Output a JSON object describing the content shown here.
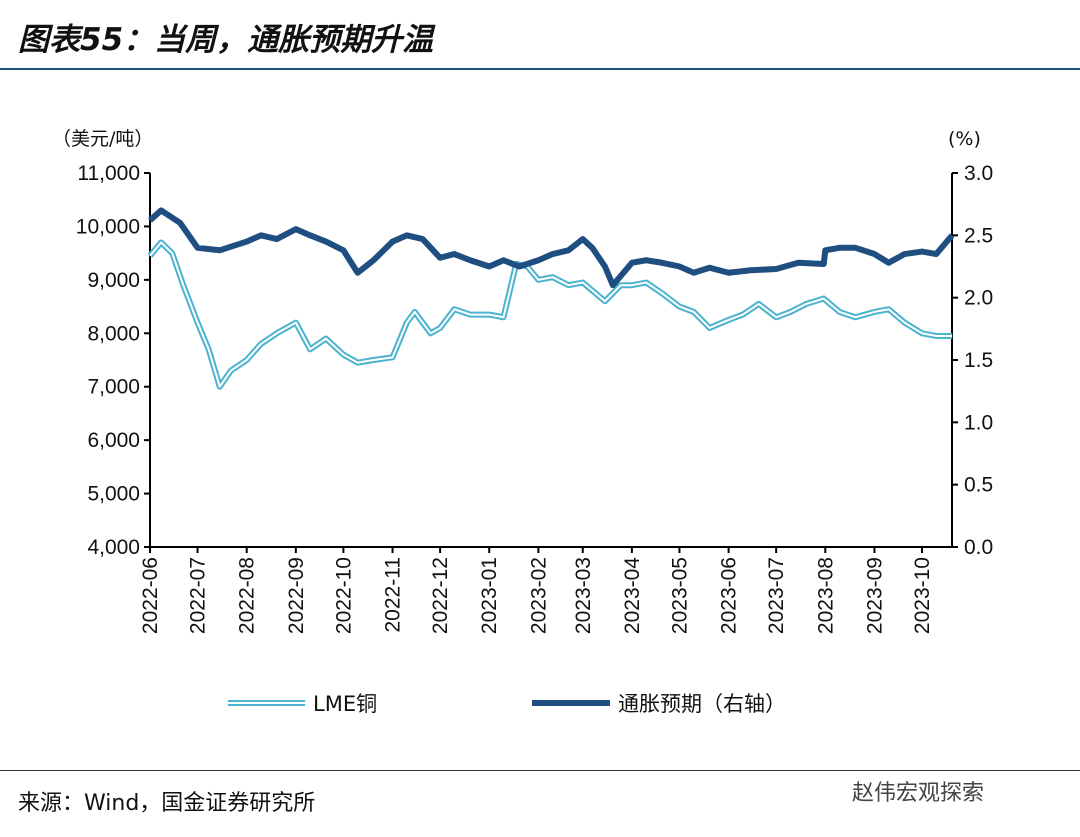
{
  "title": "图表55：当周，通胀预期升温",
  "source": "来源：Wind，国金证券研究所",
  "brand": "赵伟宏观探索",
  "colors": {
    "copper": "#4bb3cf",
    "inflation": "#1f4e80"
  },
  "chart_data": {
    "type": "line",
    "title": "图表55：当周，通胀预期升温",
    "left_axis": {
      "unit": "（美元/吨）",
      "ylim": [
        4000,
        11000
      ],
      "ticks": [
        "4,000",
        "5,000",
        "6,000",
        "7,000",
        "8,000",
        "9,000",
        "10,000",
        "11,000"
      ]
    },
    "right_axis": {
      "unit": "(%)",
      "ylim": [
        0,
        3.0
      ],
      "ticks": [
        "0.0",
        "0.5",
        "1.0",
        "1.5",
        "2.0",
        "2.5",
        "3.0"
      ]
    },
    "x_ticks": [
      "2022-06",
      "2022-07",
      "2022-08",
      "2022-09",
      "2022-10",
      "2022-11",
      "2022-12",
      "2023-01",
      "2023-02",
      "2023-03",
      "2023-04",
      "2023-05",
      "2023-06",
      "2023-07",
      "2023-08",
      "2023-09",
      "2023-10"
    ],
    "grid": false,
    "legend": "bottom",
    "series": [
      {
        "name": "LME铜",
        "axis": "left",
        "points": [
          [
            "2022-06-01",
            9450
          ],
          [
            "2022-06-08",
            9700
          ],
          [
            "2022-06-15",
            9500
          ],
          [
            "2022-06-22",
            8900
          ],
          [
            "2022-07-01",
            8200
          ],
          [
            "2022-07-08",
            7700
          ],
          [
            "2022-07-15",
            7000
          ],
          [
            "2022-07-22",
            7300
          ],
          [
            "2022-08-01",
            7500
          ],
          [
            "2022-08-10",
            7800
          ],
          [
            "2022-08-20",
            8000
          ],
          [
            "2022-09-01",
            8200
          ],
          [
            "2022-09-10",
            7700
          ],
          [
            "2022-09-20",
            7900
          ],
          [
            "2022-10-01",
            7600
          ],
          [
            "2022-10-10",
            7450
          ],
          [
            "2022-10-20",
            7500
          ],
          [
            "2022-11-01",
            7550
          ],
          [
            "2022-11-10",
            8200
          ],
          [
            "2022-11-15",
            8400
          ],
          [
            "2022-11-25",
            8000
          ],
          [
            "2022-12-01",
            8100
          ],
          [
            "2022-12-10",
            8450
          ],
          [
            "2022-12-20",
            8350
          ],
          [
            "2023-01-01",
            8350
          ],
          [
            "2023-01-10",
            8300
          ],
          [
            "2023-01-18",
            9300
          ],
          [
            "2023-01-25",
            9250
          ],
          [
            "2023-02-01",
            9000
          ],
          [
            "2023-02-10",
            9050
          ],
          [
            "2023-02-20",
            8900
          ],
          [
            "2023-03-01",
            8950
          ],
          [
            "2023-03-07",
            8800
          ],
          [
            "2023-03-15",
            8600
          ],
          [
            "2023-03-25",
            8900
          ],
          [
            "2023-04-01",
            8900
          ],
          [
            "2023-04-10",
            8950
          ],
          [
            "2023-04-20",
            8750
          ],
          [
            "2023-05-01",
            8500
          ],
          [
            "2023-05-10",
            8400
          ],
          [
            "2023-05-20",
            8100
          ],
          [
            "2023-06-01",
            8250
          ],
          [
            "2023-06-10",
            8350
          ],
          [
            "2023-06-20",
            8550
          ],
          [
            "2023-07-01",
            8300
          ],
          [
            "2023-07-10",
            8400
          ],
          [
            "2023-07-20",
            8550
          ],
          [
            "2023-07-31",
            8650
          ],
          [
            "2023-08-10",
            8400
          ],
          [
            "2023-08-20",
            8300
          ],
          [
            "2023-09-01",
            8400
          ],
          [
            "2023-09-10",
            8450
          ],
          [
            "2023-09-20",
            8200
          ],
          [
            "2023-10-01",
            8000
          ],
          [
            "2023-10-10",
            7950
          ],
          [
            "2023-10-20",
            7950
          ]
        ]
      },
      {
        "name": "通胀预期（右轴）",
        "axis": "right",
        "points": [
          [
            "2022-06-01",
            2.62
          ],
          [
            "2022-06-08",
            2.7
          ],
          [
            "2022-06-20",
            2.6
          ],
          [
            "2022-07-01",
            2.4
          ],
          [
            "2022-07-15",
            2.38
          ],
          [
            "2022-08-01",
            2.45
          ],
          [
            "2022-08-10",
            2.5
          ],
          [
            "2022-08-20",
            2.47
          ],
          [
            "2022-09-01",
            2.55
          ],
          [
            "2022-09-10",
            2.5
          ],
          [
            "2022-09-20",
            2.45
          ],
          [
            "2022-10-01",
            2.38
          ],
          [
            "2022-10-10",
            2.2
          ],
          [
            "2022-10-20",
            2.3
          ],
          [
            "2022-11-01",
            2.45
          ],
          [
            "2022-11-10",
            2.5
          ],
          [
            "2022-11-20",
            2.47
          ],
          [
            "2022-12-01",
            2.32
          ],
          [
            "2022-12-10",
            2.35
          ],
          [
            "2022-12-20",
            2.3
          ],
          [
            "2023-01-01",
            2.25
          ],
          [
            "2023-01-10",
            2.3
          ],
          [
            "2023-01-20",
            2.25
          ],
          [
            "2023-02-01",
            2.3
          ],
          [
            "2023-02-10",
            2.35
          ],
          [
            "2023-02-20",
            2.38
          ],
          [
            "2023-03-01",
            2.47
          ],
          [
            "2023-03-07",
            2.4
          ],
          [
            "2023-03-15",
            2.25
          ],
          [
            "2023-03-20",
            2.1
          ],
          [
            "2023-04-01",
            2.28
          ],
          [
            "2023-04-10",
            2.3
          ],
          [
            "2023-04-20",
            2.28
          ],
          [
            "2023-05-01",
            2.25
          ],
          [
            "2023-05-10",
            2.2
          ],
          [
            "2023-05-20",
            2.24
          ],
          [
            "2023-06-01",
            2.2
          ],
          [
            "2023-06-15",
            2.22
          ],
          [
            "2023-07-01",
            2.23
          ],
          [
            "2023-07-15",
            2.28
          ],
          [
            "2023-07-31",
            2.27
          ],
          [
            "2023-08-01",
            2.38
          ],
          [
            "2023-08-10",
            2.4
          ],
          [
            "2023-08-20",
            2.4
          ],
          [
            "2023-09-01",
            2.35
          ],
          [
            "2023-09-10",
            2.28
          ],
          [
            "2023-09-20",
            2.35
          ],
          [
            "2023-10-01",
            2.37
          ],
          [
            "2023-10-10",
            2.35
          ],
          [
            "2023-10-20",
            2.5
          ]
        ]
      }
    ]
  }
}
